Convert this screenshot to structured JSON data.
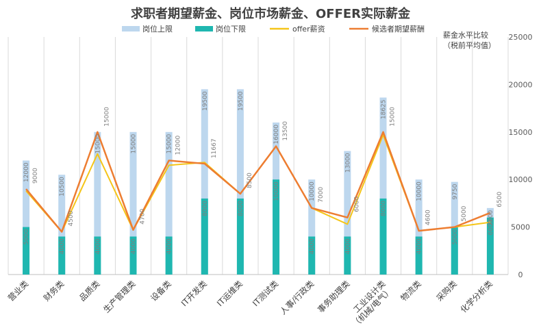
{
  "chart_data": {
    "type": "bar",
    "title": "求职者期望薪金、岗位市场薪金、OFFER实际薪金",
    "right_axis_note": [
      "薪金水平比较",
      "（税前平均值）"
    ],
    "categories": [
      "营业类",
      "财务类",
      "品质类",
      "生产管理类",
      "设备类",
      "IT开发类",
      "IT运维类",
      "IT测试类",
      "人事/行政类",
      "事务助理类",
      "工业设计类\n（机械/电气）",
      "物流类",
      "采购类",
      "化学分析类"
    ],
    "ylim": [
      0,
      25000
    ],
    "yticks": [
      0,
      5000,
      10000,
      15000,
      20000,
      25000
    ],
    "grid": false,
    "legend_position": "top",
    "series": [
      {
        "name": "岗位上限",
        "kind": "bar",
        "color": "#bdd7ee",
        "values": [
          12000,
          10500,
          15000,
          15000,
          15000,
          19500,
          19500,
          16000,
          10000,
          13000,
          18625,
          10000,
          9750,
          7000
        ]
      },
      {
        "name": "岗位下限",
        "kind": "bar",
        "color": "#1fb7b0",
        "values": [
          5000,
          4000,
          4000,
          4000,
          4000,
          8000,
          8000,
          10000,
          4000,
          4000,
          8000,
          4000,
          5000,
          6000
        ]
      },
      {
        "name": "offer薪资",
        "kind": "line",
        "color": "#f5c518",
        "values": [
          8800,
          4500,
          12700,
          4700,
          11500,
          11800,
          8500,
          13500,
          7000,
          5300,
          14700,
          4600,
          5000,
          5500
        ]
      },
      {
        "name": "候选者期望薪酬",
        "kind": "line",
        "color": "#ed7d31",
        "values": [
          9000,
          4500,
          15000,
          4700,
          12000,
          11667,
          8500,
          13500,
          7000,
          6000,
          15000,
          4600,
          5000,
          6500
        ]
      }
    ],
    "upper_labels": [
      "12000",
      "10500",
      "15000",
      "15000",
      "15000",
      "19500",
      "19500",
      "16000",
      "10000",
      "13000",
      "18625",
      "10000",
      "9750",
      "7000"
    ],
    "lower_labels": [
      "5000",
      "4000",
      "4000",
      "4000",
      "4000",
      "8000",
      "8000",
      "10000",
      "4000",
      "4000",
      "8000",
      "4000",
      "5000",
      "6000"
    ],
    "expect_labels": [
      "9000",
      "4500",
      "15000",
      "4700",
      "12000",
      "11667",
      "8500",
      "13500",
      "7000",
      "6000",
      "15000",
      "4600",
      "5000",
      "6500"
    ]
  }
}
